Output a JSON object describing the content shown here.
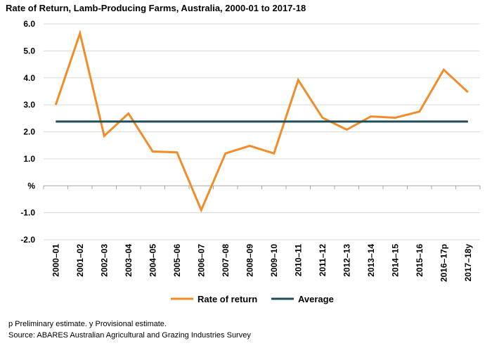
{
  "chart_data": {
    "type": "line",
    "title": "Rate of Return, Lamb-Producing Farms, Australia, 2000-01 to 2017-18",
    "xlabel": "",
    "ylabel": "",
    "categories": [
      "2000–01",
      "2001–02",
      "2002–03",
      "2003–04",
      "2004–05",
      "2005–06",
      "2006–07",
      "2007–08",
      "2008–09",
      "2009–10",
      "2010–11",
      "2011–12",
      "2012–13",
      "2013–14",
      "2014–15",
      "2015–16",
      "2016–17p",
      "2017–18y"
    ],
    "series": [
      {
        "name": "Rate of return",
        "color": "#F28C28",
        "values": [
          3.0,
          5.65,
          1.85,
          2.68,
          1.27,
          1.24,
          -0.9,
          1.2,
          1.48,
          1.2,
          3.92,
          2.52,
          2.08,
          2.57,
          2.52,
          2.75,
          4.3,
          3.47
        ]
      },
      {
        "name": "Average",
        "color": "#1F4E5A",
        "values": [
          2.38,
          2.38,
          2.38,
          2.38,
          2.38,
          2.38,
          2.38,
          2.38,
          2.38,
          2.38,
          2.38,
          2.38,
          2.38,
          2.38,
          2.38,
          2.38,
          2.38,
          2.38
        ]
      }
    ],
    "y_ticks": [
      {
        "value": 6,
        "label": "6.0"
      },
      {
        "value": 5,
        "label": "5.0"
      },
      {
        "value": 4,
        "label": "4.0"
      },
      {
        "value": 3,
        "label": "3.0"
      },
      {
        "value": 2,
        "label": "2.0"
      },
      {
        "value": 1,
        "label": "1.0"
      },
      {
        "value": 0,
        "label": "%"
      },
      {
        "value": -1,
        "label": "-1.0"
      },
      {
        "value": -2,
        "label": "-2.0"
      }
    ],
    "ylim": [
      -2,
      6
    ],
    "grid": true,
    "legend": "bottom"
  },
  "footnotes": {
    "line1": "p Preliminary estimate. y Provisional estimate.",
    "line2": "Source: ABARES Australian Agricultural and Grazing Industries Survey"
  }
}
